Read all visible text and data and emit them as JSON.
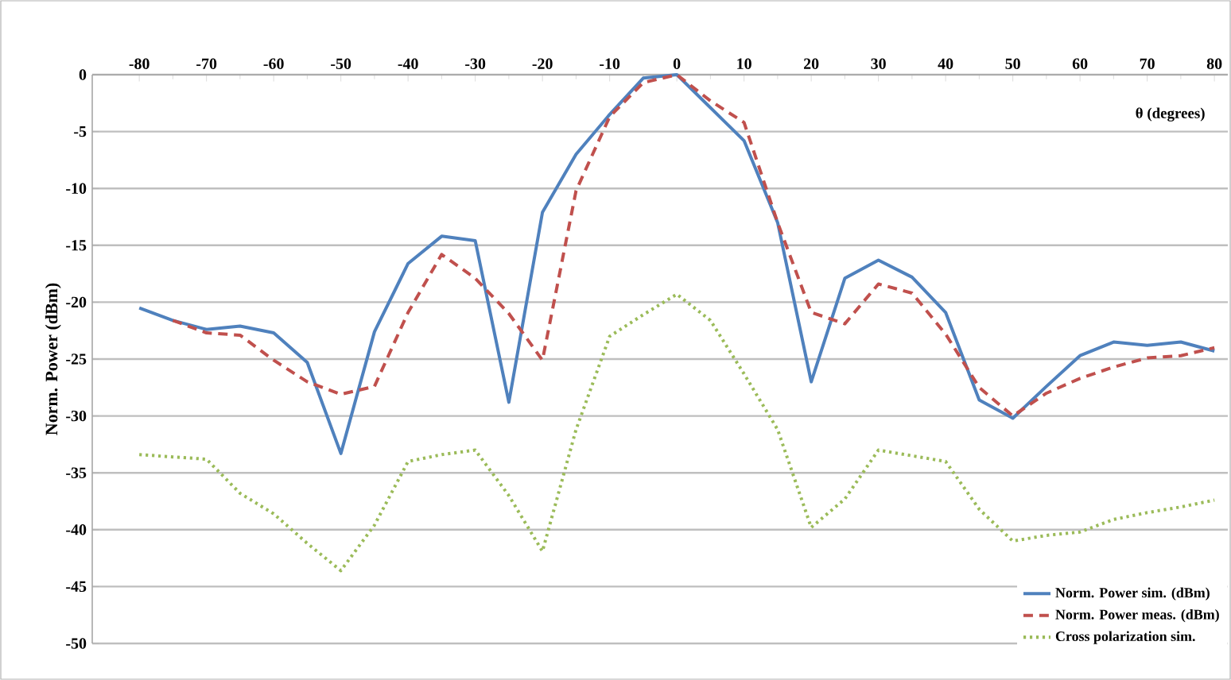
{
  "chart_data": {
    "type": "line",
    "xlabel": "θ (degrees)",
    "ylabel": "Norm. Power (dBm)",
    "xlim": [
      -87,
      82
    ],
    "ylim": [
      -50,
      0
    ],
    "xticks": [
      -80,
      -70,
      -60,
      -50,
      -40,
      -30,
      -20,
      -10,
      0,
      10,
      20,
      30,
      40,
      50,
      60,
      70,
      80
    ],
    "yticks": [
      -50,
      -45,
      -40,
      -35,
      -30,
      -25,
      -20,
      -15,
      -10,
      -5,
      0
    ],
    "grid": "y",
    "legend": "bottom right",
    "series": [
      {
        "name": "Norm. Power sim. (dBm)",
        "color": "#4f81bd",
        "line_style": "solid",
        "x": [
          -80,
          -75,
          -70,
          -65,
          -60,
          -55,
          -50,
          -45,
          -40,
          -35,
          -30,
          -25,
          -20,
          -15,
          -10,
          -5,
          0,
          10,
          15,
          20,
          25,
          30,
          35,
          40,
          45,
          50,
          55,
          60,
          65,
          70,
          75,
          80
        ],
        "values": [
          -20.5,
          -21.6,
          -22.4,
          -22.1,
          -22.7,
          -25.3,
          -33.3,
          -22.6,
          -16.6,
          -14.2,
          -14.6,
          -28.8,
          -12.1,
          -7,
          -3.5,
          -0.3,
          0,
          -5.8,
          -13,
          -27,
          -17.9,
          -16.3,
          -17.8,
          -20.9,
          -28.6,
          -30.2,
          -27.4,
          -24.7,
          -23.5,
          -23.8,
          -23.5,
          -24.3
        ]
      },
      {
        "name": "Norm. Power meas. (dBm)",
        "color": "#c0504d",
        "line_style": "dashed",
        "x": [
          -75,
          -70,
          -65,
          -60,
          -55,
          -50,
          -45,
          -40,
          -35,
          -30,
          -25,
          -20,
          -15,
          -10,
          -5,
          0,
          5,
          10,
          15,
          20,
          25,
          30,
          35,
          40,
          45,
          50,
          55,
          60,
          65,
          70,
          75,
          80
        ],
        "values": [
          -21.6,
          -22.7,
          -22.9,
          -25.1,
          -27,
          -28.1,
          -27.4,
          -20.9,
          -15.8,
          -17.9,
          -21,
          -25.1,
          -10.2,
          -3.7,
          -0.7,
          0,
          -2.3,
          -4.2,
          -13,
          -20.9,
          -21.9,
          -18.4,
          -19.2,
          -22.8,
          -27.5,
          -30,
          -28,
          -26.7,
          -25.7,
          -24.9,
          -24.7,
          -24
        ]
      },
      {
        "name": "Cross polarization sim.",
        "color": "#9bbb59",
        "line_style": "dotted",
        "x": [
          -80,
          -75,
          -70,
          -65,
          -60,
          -55,
          -50,
          -45,
          -40,
          -35,
          -30,
          -25,
          -20,
          -15,
          -10,
          -5,
          0,
          5,
          10,
          15,
          20,
          25,
          30,
          35,
          40,
          45,
          50,
          55,
          60,
          65,
          70,
          75,
          80
        ],
        "values": [
          -33.4,
          -33.6,
          -33.8,
          -36.8,
          -38.6,
          -41.2,
          -43.6,
          -39.6,
          -34,
          -33.4,
          -33,
          -37,
          -41.9,
          -31.2,
          -23,
          -21.1,
          -19.3,
          -21.6,
          -26.3,
          -31.2,
          -39.8,
          -37.3,
          -33,
          -33.5,
          -34,
          -38.2,
          -41,
          -40.5,
          -40.2,
          -39.1,
          -38.5,
          -38,
          -37.4
        ]
      }
    ]
  }
}
